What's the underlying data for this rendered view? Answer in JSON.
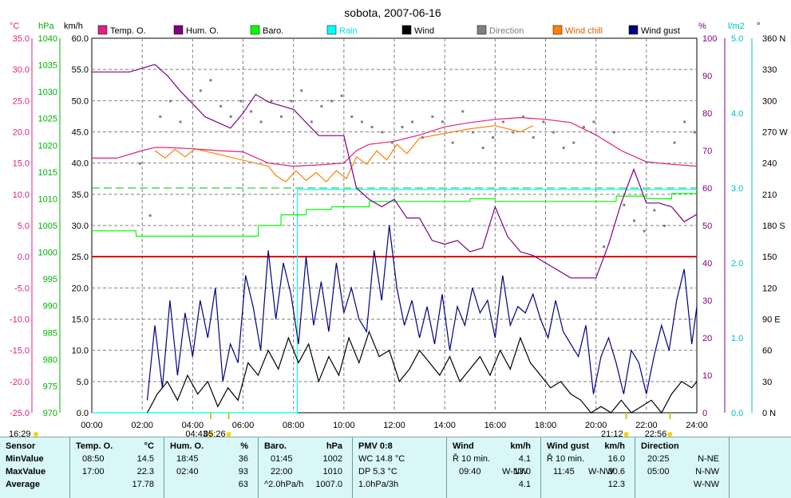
{
  "chart_data": {
    "type": "line",
    "title": "sobota, 2007-06-16",
    "x_ticks": [
      "00:00",
      "02:00",
      "04:00",
      "06:00",
      "08:00",
      "10:00",
      "12:00",
      "14:00",
      "16:00",
      "18:00",
      "20:00",
      "22:00",
      "24:00"
    ],
    "xlim": [
      "00:00",
      "24:00"
    ],
    "axes": {
      "temp": {
        "unit": "°C",
        "ylim": [
          -25,
          35
        ],
        "ticks": [
          "35.0",
          "30.0",
          "25.0",
          "20.0",
          "15.0",
          "10.0",
          "5.0",
          "0.0",
          "-5.0",
          "-10.0",
          "-15.0",
          "-20.0",
          "-25.0"
        ],
        "color": "#e0207c"
      },
      "baro": {
        "unit": "hPa",
        "ylim": [
          970,
          1040
        ],
        "ticks": [
          "1040",
          "1035",
          "1030",
          "1025",
          "1020",
          "1015",
          "1010",
          "1005",
          "1000",
          "995",
          "990",
          "985",
          "980",
          "975",
          "970"
        ],
        "color": "#00b000"
      },
      "wind": {
        "unit": "km/h",
        "ylim": [
          0,
          60
        ],
        "ticks": [
          "60.0",
          "55.0",
          "50.0",
          "45.0",
          "40.0",
          "35.0",
          "30.0",
          "25.0",
          "20.0",
          "15.0",
          "10.0",
          "5.0",
          "0.0"
        ],
        "color": "#000000"
      },
      "hum": {
        "unit": "%",
        "ylim": [
          0,
          100
        ],
        "ticks": [
          "100",
          "90",
          "80",
          "70",
          "60",
          "50",
          "40",
          "30",
          "20",
          "10",
          "0"
        ],
        "color": "#800080"
      },
      "rain": {
        "unit": "l/m2",
        "ylim": [
          0,
          5
        ],
        "ticks": [
          "5.0",
          "4.0",
          "3.0",
          "2.0",
          "1.0",
          "0.0"
        ],
        "color": "#00c0c0"
      },
      "dir": {
        "unit": "°",
        "ylim": [
          0,
          360
        ],
        "ticks": [
          "360 N",
          "330",
          "300",
          "270 W",
          "240",
          "210",
          "180 S",
          "150",
          "120",
          "90 E",
          "60",
          "30",
          "0 N"
        ],
        "color": "#000000"
      }
    },
    "legend": [
      {
        "name": "Temp. O.",
        "color": "#e0207c"
      },
      {
        "name": "Hum. O.",
        "color": "#800080"
      },
      {
        "name": "Baro.",
        "color": "#00ff00"
      },
      {
        "name": "Rain",
        "color": "#00ffff"
      },
      {
        "name": "Wind",
        "color": "#000000"
      },
      {
        "name": "Direction",
        "color": "#808080"
      },
      {
        "name": "Wind chill",
        "color": "#ff8000"
      },
      {
        "name": "Wind gust",
        "color": "#000080"
      }
    ],
    "series": [
      {
        "name": "Temp. O.",
        "axis": "temp",
        "color": "#e0207c",
        "x": [
          0,
          1,
          2,
          2.5,
          3,
          4,
          5,
          6,
          7,
          8,
          9,
          10,
          10.5,
          11,
          12,
          13,
          14,
          15,
          16,
          17,
          18,
          19,
          20,
          21,
          22,
          23,
          24
        ],
        "y": [
          15.8,
          15.8,
          17.0,
          17.5,
          17.5,
          17.3,
          17.0,
          16.8,
          15.0,
          14.5,
          14.7,
          15.0,
          17.0,
          18.0,
          18.5,
          19.5,
          20.8,
          21.5,
          22.0,
          22.3,
          22.0,
          21.5,
          19.5,
          17.0,
          15.2,
          14.8,
          14.5
        ]
      },
      {
        "name": "Wind chill",
        "axis": "temp",
        "color": "#ff8000",
        "x": [
          2.5,
          2.9,
          3.3,
          3.7,
          4.1,
          7.0,
          7.3,
          7.7,
          8.1,
          8.5,
          8.9,
          9.3,
          9.7,
          10.1,
          10.5,
          10.9,
          11.3,
          11.7,
          12.1,
          12.5,
          13.0,
          15.0,
          16.0,
          17.0,
          17.5
        ],
        "y": [
          17.0,
          15.8,
          17.2,
          16.0,
          17.3,
          14.5,
          13.0,
          12.0,
          13.8,
          12.2,
          13.5,
          12.0,
          13.8,
          12.5,
          16.0,
          14.8,
          17.0,
          15.5,
          18.0,
          16.5,
          19.0,
          20.5,
          21.0,
          20.0,
          21.0
        ]
      },
      {
        "name": "Hum. O.",
        "axis": "hum",
        "color": "#800080",
        "x": [
          0,
          1.5,
          2.5,
          3,
          3.5,
          4.5,
          5.5,
          6,
          6.5,
          7,
          8,
          9,
          10,
          10.5,
          11,
          11.5,
          12,
          12.5,
          13,
          13.5,
          14,
          14.5,
          15,
          15.5,
          16,
          16.5,
          17,
          17.5,
          18,
          19,
          20,
          20.5,
          21,
          21.5,
          22,
          22.5,
          23,
          23.5,
          24
        ],
        "y": [
          91,
          91,
          93,
          90,
          86,
          79,
          76,
          80,
          85,
          83,
          81,
          74,
          74,
          60,
          57,
          55,
          57,
          52,
          52,
          46,
          45,
          46,
          43,
          44,
          55,
          47,
          43,
          42,
          40,
          36,
          36,
          45,
          56,
          65,
          56,
          56,
          55,
          51,
          53
        ]
      },
      {
        "name": "Baro.",
        "axis": "baro",
        "color": "#00ff00",
        "x": [
          0,
          1.75,
          1.76,
          4.2,
          4.21,
          6.6,
          6.61,
          7.5,
          7.51,
          8.5,
          8.51,
          9.5,
          9.51,
          11,
          11.01,
          15,
          15.01,
          16,
          16.01,
          20.8,
          20.81,
          22,
          22.01,
          23,
          23.01,
          24
        ],
        "y": [
          1004,
          1004,
          1003,
          1003,
          1003,
          1003,
          1005,
          1005,
          1007,
          1007,
          1008,
          1008,
          1008.5,
          1008.5,
          1009.5,
          1009.5,
          1010,
          1010,
          1009.5,
          1009.5,
          1010.5,
          1010.5,
          1010,
          1010,
          1011,
          1011
        ]
      },
      {
        "name": "Rain",
        "axis": "rain",
        "color": "#00ffff",
        "x": [
          0,
          8.15,
          8.16,
          24
        ],
        "y": [
          0,
          0,
          2.98,
          2.98
        ]
      },
      {
        "name": "Wind",
        "axis": "wind",
        "color": "#000000",
        "x": [
          2.2,
          2.6,
          3,
          3.4,
          3.8,
          4.2,
          4.6,
          5,
          5.4,
          5.8,
          6.2,
          6.6,
          7,
          7.4,
          7.8,
          8.2,
          8.6,
          9,
          9.4,
          9.8,
          10.2,
          10.6,
          11,
          11.4,
          11.8,
          12.2,
          12.6,
          13,
          13.4,
          13.8,
          14.2,
          14.6,
          15,
          15.4,
          15.8,
          16.2,
          16.6,
          17,
          17.4,
          17.8,
          18.2,
          18.6,
          19,
          19.4,
          19.8,
          20.2,
          20.6,
          21,
          21.4,
          21.8,
          22.2,
          22.6,
          23,
          23.4,
          23.8,
          24
        ],
        "y": [
          0,
          3,
          5,
          2,
          6,
          3,
          5,
          1,
          4,
          2,
          8,
          6,
          10,
          7,
          12,
          8,
          11,
          5,
          9,
          6,
          12,
          8,
          13,
          9,
          10,
          5,
          7,
          10,
          8,
          6,
          9,
          5,
          7,
          9,
          6,
          10,
          7,
          12,
          8,
          6,
          4,
          5,
          3,
          2,
          0,
          1,
          0,
          2,
          0,
          1,
          2,
          0,
          3,
          5,
          4,
          5
        ]
      },
      {
        "name": "Wind gust",
        "axis": "wind",
        "color": "#000080",
        "x": [
          2.2,
          2.5,
          2.8,
          3.1,
          3.4,
          3.7,
          4,
          4.3,
          4.6,
          4.9,
          5.2,
          5.5,
          5.8,
          6.1,
          6.4,
          6.7,
          7,
          7.3,
          7.6,
          7.9,
          8.2,
          8.5,
          8.8,
          9.1,
          9.4,
          9.7,
          10,
          10.3,
          10.6,
          10.9,
          11.2,
          11.5,
          11.8,
          12.1,
          12.4,
          12.7,
          13,
          13.3,
          13.6,
          13.9,
          14.2,
          14.5,
          14.8,
          15.1,
          15.4,
          15.7,
          16,
          16.3,
          16.6,
          16.9,
          17.2,
          17.5,
          17.8,
          18.1,
          18.4,
          18.7,
          19,
          19.3,
          19.6,
          19.9,
          20.2,
          20.5,
          20.8,
          21.1,
          21.4,
          21.7,
          22,
          22.3,
          22.6,
          22.9,
          23.2,
          23.5,
          23.8,
          24
        ],
        "y": [
          2,
          14,
          4,
          18,
          6,
          16,
          9,
          18,
          12,
          20,
          5,
          11,
          8,
          22,
          17,
          10,
          26,
          15,
          24,
          19,
          11,
          25,
          14,
          21,
          13,
          24,
          16,
          20,
          15,
          13,
          26,
          18,
          30,
          20,
          14,
          18,
          12,
          17,
          11,
          19,
          10,
          17,
          14,
          20,
          16,
          18,
          12,
          22,
          14,
          17,
          16,
          19,
          15,
          12,
          18,
          13,
          11,
          9,
          14,
          3,
          9,
          12,
          8,
          3,
          10,
          8,
          3,
          9,
          14,
          10,
          18,
          23,
          11,
          17
        ]
      },
      {
        "name": "Direction",
        "axis": "dir",
        "color": "#808080",
        "x": [
          1.9,
          2.3,
          2.7,
          3.1,
          3.5,
          3.9,
          4.3,
          4.7,
          5.1,
          5.5,
          5.9,
          6.3,
          6.7,
          7.1,
          7.5,
          7.9,
          8.3,
          8.7,
          9.1,
          9.5,
          9.9,
          10.3,
          10.7,
          11.1,
          11.5,
          11.9,
          12.3,
          12.7,
          13.1,
          13.5,
          13.9,
          14.3,
          14.7,
          15.1,
          15.5,
          15.9,
          16.3,
          16.7,
          17.1,
          17.5,
          17.9,
          18.3,
          18.7,
          19.1,
          19.5,
          19.9,
          20.3,
          20.7,
          21.1,
          21.5,
          21.9,
          22.3,
          22.7,
          23.1,
          23.5,
          23.9
        ],
        "y": [
          240,
          190,
          285,
          300,
          280,
          300,
          310,
          320,
          295,
          285,
          300,
          290,
          280,
          300,
          285,
          300,
          310,
          280,
          295,
          300,
          305,
          285,
          280,
          275,
          270,
          260,
          275,
          280,
          265,
          285,
          280,
          260,
          290,
          270,
          255,
          265,
          280,
          270,
          285,
          265,
          280,
          270,
          255,
          260,
          275,
          280,
          160,
          270,
          200,
          185,
          175,
          195,
          180,
          260,
          280,
          270
        ]
      }
    ]
  },
  "xmarkers": [
    {
      "label": "16:29",
      "time": "16:29",
      "row": "second"
    },
    {
      "label": "04:43",
      "time": "04:43",
      "row": "first"
    },
    {
      "label": "05:26",
      "time": "05:26",
      "row": "first"
    },
    {
      "label": "21:12",
      "time": "21:12",
      "row": "first"
    },
    {
      "label": "22:56",
      "time": "22:56",
      "row": "first"
    }
  ],
  "stats": {
    "sensor": {
      "title": "Sensor",
      "rows": [
        "MinValue",
        "MaxValue",
        "Average"
      ]
    },
    "temp": {
      "title": "Temp. O.",
      "unit": "°C",
      "min_time": "08:50",
      "min_val": "14.5",
      "max_time": "17:00",
      "max_val": "22.3",
      "avg": "17.78"
    },
    "hum": {
      "title": "Hum. O.",
      "unit": "%",
      "min_time": "18:45",
      "min_val": "36",
      "max_time": "02:40",
      "max_val": "93",
      "avg": "63"
    },
    "baro": {
      "title": "Baro.",
      "unit": "hPa",
      "min_time": "01:45",
      "min_val": "1002",
      "max_time": "22:00",
      "max_val": "1010",
      "avg_label": "^2.0hPa/h",
      "avg": "1007.0"
    },
    "pmv": {
      "title": "PMV 0:8",
      "row1": "WC 14.8 °C",
      "row2": "DP 5.3 °C",
      "row3": "1.0hPa/3h"
    },
    "wind": {
      "title": "Wind",
      "unit": "km/h",
      "r1_label": "Ř 10 min.",
      "r1_val": "4.1",
      "r2_time": "09:40",
      "r2_dir": "W-NW",
      "r2_val": "13.0",
      "r3_val": "4.1"
    },
    "gust": {
      "title": "Wind gust",
      "unit": "km/h",
      "r1_label": "Ř 10 min.",
      "r1_val": "16.0",
      "r2_time": "11:45",
      "r2_dir": "W-NW",
      "r2_val": "30.6",
      "r3_val": "12.3"
    },
    "dir": {
      "title": "Direction",
      "r1_time": "20:25",
      "r1_val": "N-NE",
      "r2_time": "05:00",
      "r2_val": "N-NW",
      "r3_val": "W-NW"
    }
  }
}
